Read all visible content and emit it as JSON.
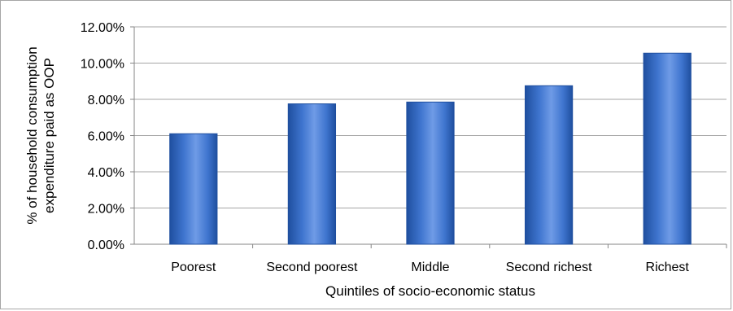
{
  "chart_data": {
    "type": "bar",
    "title": "",
    "xlabel": "Quintiles of socio-economic status",
    "ylabel_lines": [
      "% of household consumption",
      "expenditure paid as OOP"
    ],
    "categories": [
      "Poorest",
      "Second poorest",
      "Middle",
      "Second richest",
      "Richest"
    ],
    "values": [
      6.1,
      7.75,
      7.85,
      8.75,
      10.55
    ],
    "value_unit": "percent",
    "ylim": [
      0,
      12
    ],
    "y_ticks": [
      0,
      2,
      4,
      6,
      8,
      10,
      12
    ],
    "y_tick_labels": [
      "0.00%",
      "2.00%",
      "4.00%",
      "6.00%",
      "8.00%",
      "10.00%",
      "12.00%"
    ],
    "grid": true,
    "legend": "none",
    "colors": {
      "bar_light": "#6f9be6",
      "bar_mid": "#3f75cf",
      "bar_dark": "#1f4f9f",
      "grid": "#a6a6a6",
      "axis": "#868686",
      "frame": "#a6a6a6"
    }
  }
}
